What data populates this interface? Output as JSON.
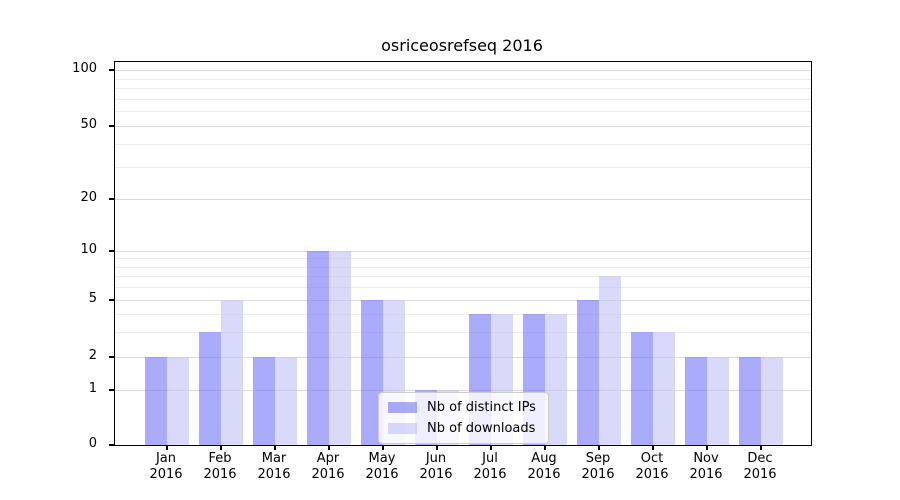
{
  "title": "osriceosrefseq 2016",
  "chart_data": {
    "type": "bar",
    "title": "osriceosrefseq 2016",
    "categories": [
      "Jan",
      "Feb",
      "Mar",
      "Apr",
      "May",
      "Jun",
      "Jul",
      "Aug",
      "Sep",
      "Oct",
      "Nov",
      "Dec"
    ],
    "year": "2016",
    "series": [
      {
        "name": "Nb of distinct IPs",
        "fill": "rgba(120,120,248,0.62)",
        "values": [
          2,
          3,
          2,
          10,
          5,
          1,
          4,
          4,
          5,
          3,
          2,
          2
        ]
      },
      {
        "name": "Nb of downloads",
        "fill": "rgba(193,193,245,0.62)",
        "values": [
          2,
          5,
          2,
          10,
          5,
          1,
          4,
          4,
          7,
          3,
          2,
          2
        ]
      }
    ],
    "yscale": "log (0 pinned at baseline)",
    "ylim": [
      0,
      100
    ],
    "yticks": [
      0,
      1,
      2,
      5,
      10,
      20,
      50,
      100
    ],
    "ytick_labels": [
      "0",
      "1",
      "2",
      "5",
      "10",
      "20",
      "50",
      "100"
    ],
    "minor_yticks": [
      3,
      4,
      6,
      7,
      8,
      9,
      30,
      40,
      60,
      70,
      80,
      90
    ],
    "grid": true,
    "legend_position": "lower center"
  },
  "legend": {
    "items": [
      "Nb of distinct IPs",
      "Nb of downloads"
    ]
  },
  "colors": {
    "bar_distinct_ips": "#aaaaf8",
    "bar_downloads": "#d8d8f8",
    "grid_major": "#dadada",
    "grid_minor": "#ececec",
    "axis": "#000000",
    "legend_border": "#cccccc",
    "text": "#000000"
  }
}
